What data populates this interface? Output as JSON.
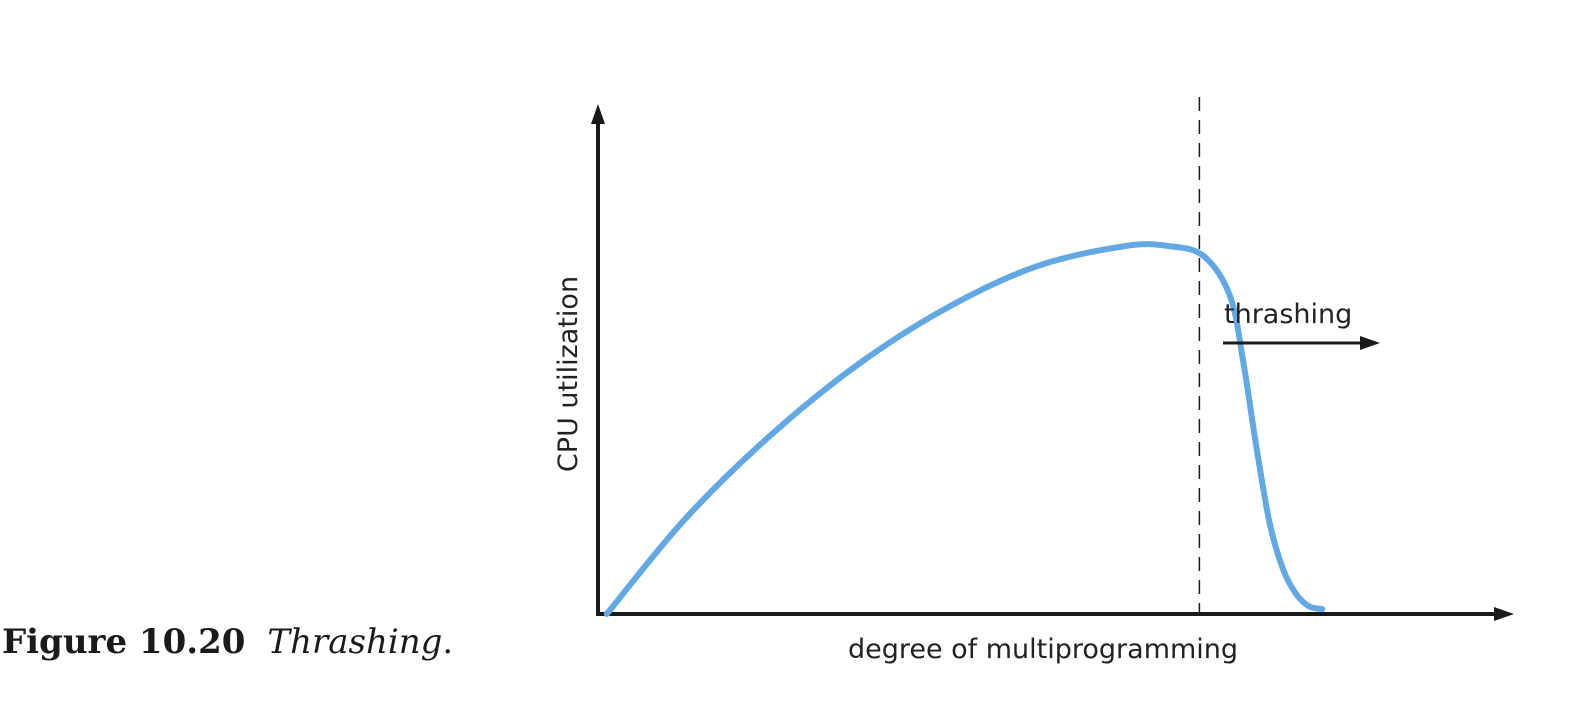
{
  "caption": {
    "number": "Figure 10.20",
    "title": "Thrashing",
    "trailing": "."
  },
  "colors": {
    "curve": "#62A8E5",
    "axis": "#1a1a1a",
    "text": "#222222"
  },
  "chart_data": {
    "type": "line",
    "title": "",
    "xlabel": "degree of multiprogramming",
    "ylabel": "CPU utilization",
    "ticks": "none",
    "grid": false,
    "xlim": [
      0,
      10
    ],
    "ylim": [
      0,
      10
    ],
    "series": [
      {
        "x": [
          0.1,
          1.0,
          2.0,
          3.0,
          4.0,
          5.0,
          6.0,
          6.5,
          6.9,
          7.2,
          7.35,
          7.5,
          7.65,
          7.8,
          7.95,
          8.1,
          8.25
        ],
        "y": [
          0.0,
          1.9,
          3.6,
          5.0,
          6.1,
          6.9,
          7.3,
          7.3,
          7.1,
          6.3,
          5.0,
          3.3,
          1.8,
          0.9,
          0.4,
          0.15,
          0.1
        ]
      }
    ],
    "threshold_x": 6.85,
    "annotations": [
      {
        "text": "thrashing",
        "direction": "right"
      }
    ]
  }
}
